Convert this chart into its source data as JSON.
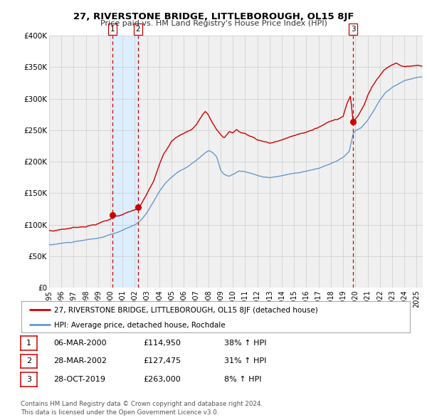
{
  "title": "27, RIVERSTONE BRIDGE, LITTLEBOROUGH, OL15 8JF",
  "subtitle": "Price paid vs. HM Land Registry's House Price Index (HPI)",
  "red_label": "27, RIVERSTONE BRIDGE, LITTLEBOROUGH, OL15 8JF (detached house)",
  "blue_label": "HPI: Average price, detached house, Rochdale",
  "footer_line1": "Contains HM Land Registry data © Crown copyright and database right 2024.",
  "footer_line2": "This data is licensed under the Open Government Licence v3.0.",
  "transactions": [
    {
      "label": "1",
      "date": "06-MAR-2000",
      "price": "£114,950",
      "change": "38% ↑ HPI",
      "year": 2000.18
    },
    {
      "label": "2",
      "date": "28-MAR-2002",
      "price": "£127,475",
      "change": "31% ↑ HPI",
      "year": 2002.24
    },
    {
      "label": "3",
      "date": "28-OCT-2019",
      "price": "£263,000",
      "change": "8% ↑ HPI",
      "year": 2019.83
    }
  ],
  "transaction_prices": [
    114950,
    127475,
    263000
  ],
  "shading_between": [
    2000.18,
    2002.24
  ],
  "ylim": [
    0,
    400000
  ],
  "xlim": [
    1995.0,
    2025.5
  ],
  "yticks": [
    0,
    50000,
    100000,
    150000,
    200000,
    250000,
    300000,
    350000,
    400000
  ],
  "ytick_labels": [
    "£0",
    "£50K",
    "£100K",
    "£150K",
    "£200K",
    "£250K",
    "£300K",
    "£350K",
    "£400K"
  ],
  "xticks": [
    1995,
    1996,
    1997,
    1998,
    1999,
    2000,
    2001,
    2002,
    2003,
    2004,
    2005,
    2006,
    2007,
    2008,
    2009,
    2010,
    2011,
    2012,
    2013,
    2014,
    2015,
    2016,
    2017,
    2018,
    2019,
    2020,
    2021,
    2022,
    2023,
    2024,
    2025
  ],
  "red_color": "#cc0000",
  "blue_color": "#6699cc",
  "shade_color": "#ddeeff",
  "grid_color": "#cccccc",
  "background_color": "#f0f0f0"
}
